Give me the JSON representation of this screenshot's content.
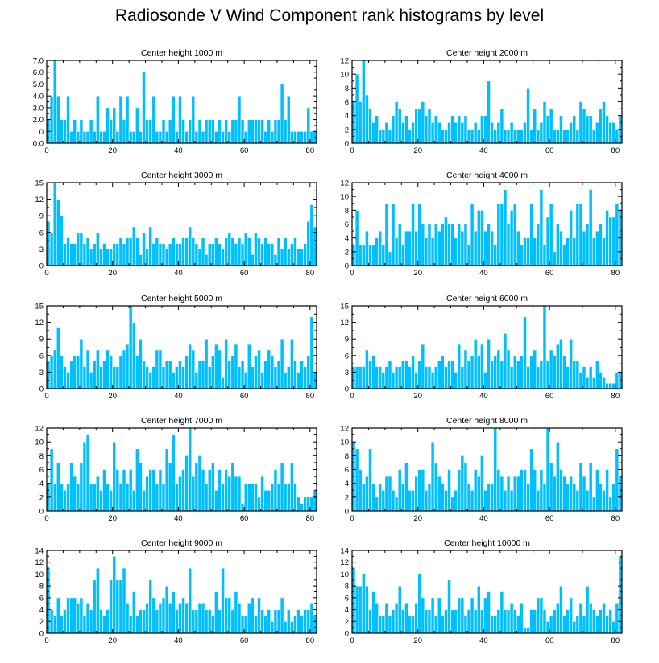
{
  "title": "Radiosonde V Wind Component rank histograms by level",
  "colors": {
    "bar": "#00BFFF",
    "bar_edge": "#ffffff",
    "axis": "#000000"
  },
  "chart_data": [
    {
      "type": "bar",
      "title": "Center height 1000 m",
      "xlim": [
        0,
        82
      ],
      "ylim": [
        0,
        7
      ],
      "xticks": [
        0,
        20,
        40,
        60,
        80
      ],
      "xtick_labels": [
        "0",
        "20",
        "40",
        "60",
        "80"
      ],
      "yticks": [
        0,
        1,
        2,
        3,
        4,
        5,
        6,
        7
      ],
      "ytick_labels": [
        "0.0",
        "1.0",
        "2.0",
        "3.0",
        "4.0",
        "5.0",
        "6.0",
        "7.0"
      ],
      "values": [
        2,
        4,
        7,
        4,
        2,
        2,
        4,
        1,
        2,
        1,
        2,
        1,
        1,
        2,
        1,
        4,
        1,
        1,
        3,
        2,
        3,
        1,
        4,
        2,
        4,
        1,
        1,
        3,
        1,
        6,
        2,
        2,
        4,
        1,
        1,
        2,
        1,
        2,
        4,
        1,
        4,
        2,
        1,
        2,
        4,
        1,
        2,
        1,
        2,
        2,
        2,
        1,
        2,
        1,
        2,
        1,
        2,
        2,
        4,
        2,
        1,
        2,
        2,
        2,
        2,
        2,
        1,
        2,
        1,
        2,
        2,
        5,
        2,
        4,
        1,
        1,
        1,
        1,
        1,
        3,
        1,
        1
      ]
    },
    {
      "type": "bar",
      "title": "Center height 2000 m",
      "xlim": [
        0,
        82
      ],
      "ylim": [
        0,
        12
      ],
      "xticks": [
        0,
        20,
        40,
        60,
        80
      ],
      "xtick_labels": [
        "0",
        "20",
        "40",
        "60",
        "80"
      ],
      "yticks": [
        0,
        2,
        4,
        6,
        8,
        10,
        12
      ],
      "ytick_labels": [
        "0",
        "2",
        "4",
        "6",
        "8",
        "10",
        "12"
      ],
      "values": [
        6,
        10,
        6,
        12,
        7,
        5,
        3,
        4,
        2,
        2,
        3,
        2,
        4,
        6,
        5,
        3,
        4,
        2,
        3,
        5,
        5,
        6,
        4,
        5,
        3,
        4,
        3,
        2,
        2,
        3,
        4,
        3,
        4,
        3,
        4,
        2,
        2,
        3,
        2,
        4,
        4,
        9,
        3,
        2,
        3,
        5,
        2,
        2,
        3,
        2,
        2,
        2,
        3,
        8,
        2,
        5,
        2,
        3,
        6,
        4,
        5,
        2,
        2,
        4,
        2,
        2,
        3,
        4,
        2,
        6,
        5,
        4,
        4,
        2,
        3,
        5,
        6,
        4,
        3,
        3,
        2,
        4
      ]
    },
    {
      "type": "bar",
      "title": "Center height 3000 m",
      "xlim": [
        0,
        82
      ],
      "ylim": [
        0,
        15
      ],
      "xticks": [
        0,
        20,
        40,
        60,
        80
      ],
      "xtick_labels": [
        "0",
        "20",
        "40",
        "60",
        "80"
      ],
      "yticks": [
        0,
        3,
        6,
        9,
        12,
        15
      ],
      "ytick_labels": [
        "0",
        "3",
        "6",
        "9",
        "12",
        "15"
      ],
      "values": [
        8,
        6,
        15,
        12,
        9,
        4,
        5,
        4,
        4,
        6,
        6,
        4,
        5,
        3,
        4,
        6,
        3,
        4,
        3,
        3,
        4,
        4,
        5,
        4,
        5,
        5,
        7,
        5,
        2,
        6,
        3,
        7,
        4,
        5,
        4,
        4,
        3,
        4,
        5,
        4,
        4,
        5,
        5,
        7,
        5,
        4,
        3,
        5,
        2,
        4,
        4,
        5,
        4,
        3,
        5,
        6,
        5,
        4,
        5,
        4,
        6,
        5,
        2,
        6,
        5,
        4,
        5,
        4,
        4,
        2,
        5,
        3,
        5,
        3,
        4,
        5,
        3,
        3,
        4,
        8,
        11,
        7
      ]
    },
    {
      "type": "bar",
      "title": "Center height 4000 m",
      "xlim": [
        0,
        82
      ],
      "ylim": [
        0,
        12
      ],
      "xticks": [
        0,
        20,
        40,
        60,
        80
      ],
      "xtick_labels": [
        "0",
        "20",
        "40",
        "60",
        "80"
      ],
      "yticks": [
        0,
        2,
        4,
        6,
        8,
        10,
        12
      ],
      "ytick_labels": [
        "0",
        "2",
        "4",
        "6",
        "8",
        "10",
        "12"
      ],
      "values": [
        3,
        8,
        3,
        3,
        5,
        3,
        3,
        4,
        5,
        3,
        9,
        2,
        9,
        4,
        6,
        3,
        5,
        5,
        9,
        5,
        9,
        6,
        4,
        6,
        4,
        6,
        5,
        6,
        7,
        6,
        6,
        4,
        6,
        5,
        6,
        3,
        9,
        5,
        8,
        8,
        5,
        6,
        5,
        3,
        9,
        9,
        11,
        6,
        8,
        9,
        5,
        3,
        4,
        4,
        9,
        4,
        6,
        11,
        3,
        7,
        9,
        2,
        6,
        5,
        3,
        4,
        8,
        4,
        9,
        9,
        5,
        6,
        11,
        4,
        5,
        6,
        4,
        8,
        7,
        7,
        9,
        8
      ]
    },
    {
      "type": "bar",
      "title": "Center height 5000 m",
      "xlim": [
        0,
        82
      ],
      "ylim": [
        0,
        15
      ],
      "xticks": [
        0,
        20,
        40,
        60,
        80
      ],
      "xtick_labels": [
        "0",
        "20",
        "40",
        "60",
        "80"
      ],
      "yticks": [
        0,
        3,
        6,
        9,
        12,
        15
      ],
      "ytick_labels": [
        "0",
        "3",
        "6",
        "9",
        "12",
        "15"
      ],
      "values": [
        5,
        6,
        7,
        11,
        6,
        4,
        3,
        5,
        6,
        6,
        9,
        4,
        7,
        3,
        5,
        7,
        4,
        5,
        7,
        6,
        4,
        4,
        6,
        7,
        8,
        15,
        12,
        6,
        9,
        5,
        4,
        3,
        4,
        7,
        7,
        4,
        5,
        5,
        3,
        4,
        5,
        4,
        6,
        8,
        7,
        3,
        5,
        5,
        9,
        4,
        6,
        8,
        7,
        2,
        9,
        5,
        6,
        8,
        4,
        5,
        3,
        8,
        4,
        6,
        7,
        3,
        5,
        7,
        6,
        4,
        5,
        9,
        3,
        4,
        9,
        5,
        3,
        5,
        4,
        6,
        13,
        3
      ]
    },
    {
      "type": "bar",
      "title": "Center height 6000 m",
      "xlim": [
        0,
        82
      ],
      "ylim": [
        0,
        15
      ],
      "xticks": [
        0,
        20,
        40,
        60,
        80
      ],
      "xtick_labels": [
        "0",
        "20",
        "40",
        "60",
        "80"
      ],
      "yticks": [
        0,
        3,
        6,
        9,
        12,
        15
      ],
      "ytick_labels": [
        "0",
        "3",
        "6",
        "9",
        "12",
        "15"
      ],
      "values": [
        4,
        4,
        4,
        4,
        7,
        5,
        6,
        4,
        4,
        3,
        4,
        5,
        3,
        4,
        4,
        5,
        5,
        4,
        6,
        3,
        5,
        8,
        4,
        4,
        3,
        4,
        5,
        6,
        4,
        5,
        5,
        3,
        8,
        4,
        7,
        5,
        6,
        9,
        6,
        8,
        3,
        9,
        5,
        6,
        7,
        5,
        10,
        7,
        4,
        6,
        5,
        6,
        13,
        4,
        6,
        7,
        4,
        5,
        15,
        5,
        7,
        6,
        8,
        9,
        6,
        4,
        9,
        5,
        5,
        3,
        4,
        2,
        4,
        2,
        5,
        3,
        2,
        1,
        1,
        1,
        3,
        3
      ]
    },
    {
      "type": "bar",
      "title": "Center height 7000 m",
      "xlim": [
        0,
        82
      ],
      "ylim": [
        0,
        12
      ],
      "xticks": [
        0,
        20,
        40,
        60,
        80
      ],
      "xtick_labels": [
        "0",
        "20",
        "40",
        "60",
        "80"
      ],
      "yticks": [
        0,
        2,
        4,
        6,
        8,
        10,
        12
      ],
      "ytick_labels": [
        "0",
        "2",
        "4",
        "6",
        "8",
        "10",
        "12"
      ],
      "values": [
        4,
        9,
        4,
        7,
        4,
        3,
        4,
        7,
        5,
        4,
        7,
        10,
        11,
        4,
        4,
        5,
        3,
        6,
        4,
        3,
        10,
        6,
        4,
        6,
        4,
        6,
        3,
        9,
        7,
        3,
        5,
        6,
        6,
        4,
        6,
        4,
        9,
        7,
        11,
        4,
        5,
        6,
        8,
        12,
        5,
        7,
        8,
        6,
        4,
        6,
        7,
        3,
        6,
        4,
        6,
        5,
        7,
        5,
        5,
        1,
        4,
        4,
        4,
        4,
        2,
        5,
        3,
        3,
        4,
        6,
        4,
        7,
        4,
        4,
        7,
        4,
        2,
        1,
        2,
        2,
        2,
        3
      ]
    },
    {
      "type": "bar",
      "title": "Center height 8000 m",
      "xlim": [
        0,
        82
      ],
      "ylim": [
        0,
        12
      ],
      "xticks": [
        0,
        20,
        40,
        60,
        80
      ],
      "xtick_labels": [
        "0",
        "20",
        "40",
        "60",
        "80"
      ],
      "yticks": [
        0,
        2,
        4,
        6,
        8,
        10,
        12
      ],
      "ytick_labels": [
        "0",
        "2",
        "4",
        "6",
        "8",
        "10",
        "12"
      ],
      "values": [
        10,
        9,
        6,
        4,
        5,
        9,
        4,
        2,
        4,
        3,
        5,
        5,
        3,
        2,
        6,
        4,
        7,
        3,
        3,
        5,
        6,
        6,
        3,
        4,
        10,
        7,
        5,
        4,
        3,
        6,
        2,
        3,
        6,
        8,
        7,
        4,
        3,
        6,
        5,
        8,
        3,
        4,
        4,
        12,
        6,
        5,
        3,
        5,
        3,
        5,
        5,
        6,
        6,
        4,
        9,
        6,
        3,
        6,
        4,
        12,
        7,
        5,
        10,
        6,
        5,
        4,
        5,
        4,
        3,
        7,
        5,
        3,
        7,
        2,
        6,
        4,
        3,
        6,
        2,
        4,
        9,
        5
      ]
    },
    {
      "type": "bar",
      "title": "Center height 9000 m",
      "xlim": [
        0,
        82
      ],
      "ylim": [
        0,
        14
      ],
      "xticks": [
        0,
        20,
        40,
        60,
        80
      ],
      "xtick_labels": [
        "0",
        "20",
        "40",
        "60",
        "80"
      ],
      "yticks": [
        0,
        2,
        4,
        6,
        8,
        10,
        12,
        14
      ],
      "ytick_labels": [
        "0",
        "2",
        "4",
        "6",
        "8",
        "10",
        "12",
        "14"
      ],
      "values": [
        11,
        4,
        3,
        6,
        3,
        4,
        6,
        6,
        6,
        5,
        6,
        3,
        5,
        4,
        9,
        11,
        4,
        3,
        4,
        9,
        13,
        9,
        9,
        11,
        5,
        3,
        7,
        3,
        4,
        4,
        5,
        9,
        6,
        4,
        5,
        6,
        8,
        5,
        7,
        4,
        5,
        6,
        5,
        11,
        4,
        4,
        5,
        5,
        4,
        4,
        3,
        7,
        4,
        11,
        6,
        6,
        4,
        7,
        5,
        3,
        3,
        5,
        6,
        3,
        6,
        4,
        3,
        4,
        2,
        4,
        4,
        6,
        2,
        4,
        2,
        3,
        4,
        3,
        4,
        4,
        5,
        3
      ]
    },
    {
      "type": "bar",
      "title": "Center height 10000 m",
      "xlim": [
        0,
        82
      ],
      "ylim": [
        0,
        14
      ],
      "xticks": [
        0,
        20,
        40,
        60,
        80
      ],
      "xtick_labels": [
        "0",
        "20",
        "40",
        "60",
        "80"
      ],
      "yticks": [
        0,
        2,
        4,
        6,
        8,
        10,
        12,
        14
      ],
      "ytick_labels": [
        "0",
        "2",
        "4",
        "6",
        "8",
        "10",
        "12",
        "14"
      ],
      "values": [
        11,
        8,
        8,
        10,
        8,
        4,
        7,
        5,
        3,
        3,
        5,
        3,
        4,
        5,
        8,
        4,
        5,
        3,
        3,
        5,
        10,
        6,
        4,
        4,
        6,
        3,
        6,
        3,
        4,
        9,
        4,
        4,
        6,
        6,
        3,
        4,
        6,
        4,
        8,
        4,
        6,
        7,
        3,
        3,
        4,
        7,
        4,
        4,
        5,
        4,
        3,
        5,
        1,
        1,
        4,
        4,
        6,
        6,
        4,
        2,
        3,
        4,
        5,
        8,
        3,
        4,
        6,
        2,
        3,
        5,
        3,
        8,
        5,
        4,
        3,
        4,
        5,
        3,
        4,
        2,
        5,
        13
      ]
    }
  ]
}
